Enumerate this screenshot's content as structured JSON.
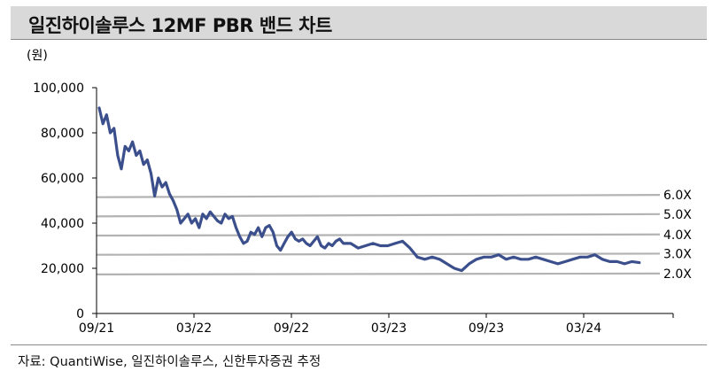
{
  "title": "일진하이솔루스 12MF PBR 밴드 차트",
  "source": "자료: QuantiWise, 일진하이솔루스, 신한투자증권 추정",
  "colors": {
    "price": "#3b4f8c",
    "band": "#b3b3b3",
    "axis": "#000000"
  },
  "chart_data": {
    "type": "line",
    "unit_label": "(원)",
    "ylim": [
      0,
      100000
    ],
    "y_ticks": [
      "0",
      "20,000",
      "40,000",
      "60,000",
      "80,000",
      "100,000"
    ],
    "y_tick_values": [
      0,
      20000,
      40000,
      60000,
      80000,
      100000
    ],
    "x_ticks": [
      "09/21",
      "03/22",
      "09/22",
      "03/23",
      "09/23",
      "03/24"
    ],
    "x_tick_values": [
      "2021-09",
      "2022-03",
      "2022-09",
      "2023-03",
      "2023-09",
      "2024-03"
    ],
    "bands": [
      {
        "label": "6.0X",
        "values": [
          51500,
          52500
        ]
      },
      {
        "label": "5.0X",
        "values": [
          43000,
          44000
        ]
      },
      {
        "label": "4.0X",
        "values": [
          34500,
          35000
        ]
      },
      {
        "label": "3.0X",
        "values": [
          26000,
          26500
        ]
      },
      {
        "label": "2.0X",
        "values": [
          17300,
          17700
        ]
      }
    ],
    "series": [
      {
        "x": [
          "2021-09-20",
          "2021-09-27",
          "2021-10-04",
          "2021-10-11",
          "2021-10-18",
          "2021-10-25",
          "2021-11-01",
          "2021-11-08",
          "2021-11-15",
          "2021-11-22",
          "2021-11-29",
          "2021-12-06",
          "2021-12-13",
          "2021-12-20",
          "2021-12-27",
          "2022-01-03",
          "2022-01-10",
          "2022-01-17",
          "2022-01-24",
          "2022-01-31",
          "2022-02-07",
          "2022-02-14",
          "2022-02-21",
          "2022-02-28",
          "2022-03-07",
          "2022-03-14",
          "2022-03-21",
          "2022-03-28",
          "2022-04-04",
          "2022-04-11",
          "2022-04-18",
          "2022-04-25",
          "2022-05-02",
          "2022-05-09",
          "2022-05-16",
          "2022-05-23",
          "2022-05-30",
          "2022-06-06",
          "2022-06-13",
          "2022-06-20",
          "2022-06-27",
          "2022-07-04",
          "2022-07-11",
          "2022-07-18",
          "2022-07-25",
          "2022-08-01",
          "2022-08-08",
          "2022-08-15",
          "2022-08-22",
          "2022-08-29",
          "2022-09-05",
          "2022-09-12",
          "2022-09-19",
          "2022-09-26",
          "2022-10-03",
          "2022-10-10",
          "2022-10-17",
          "2022-10-24",
          "2022-10-31",
          "2022-11-07",
          "2022-11-14",
          "2022-11-21",
          "2022-11-28",
          "2022-12-05",
          "2022-12-12",
          "2022-12-19",
          "2022-12-26",
          "2023-01-09",
          "2023-01-23",
          "2023-02-06",
          "2023-02-20",
          "2023-03-06",
          "2023-03-20",
          "2023-04-03",
          "2023-04-17",
          "2023-05-01",
          "2023-05-15",
          "2023-05-29",
          "2023-06-12",
          "2023-06-26",
          "2023-07-10",
          "2023-07-24",
          "2023-08-07",
          "2023-08-21",
          "2023-09-04",
          "2023-09-18",
          "2023-10-02",
          "2023-10-16",
          "2023-10-30",
          "2023-11-13",
          "2023-11-27",
          "2023-12-11",
          "2023-12-25",
          "2024-01-08",
          "2024-01-22",
          "2024-02-05",
          "2024-02-19",
          "2024-03-04",
          "2024-03-18",
          "2024-04-01",
          "2024-04-15",
          "2024-04-29",
          "2024-05-13",
          "2024-05-27",
          "2024-06-10",
          "2024-06-24",
          "2024-07-08"
        ],
        "values": [
          91000,
          84000,
          88000,
          80000,
          82000,
          70000,
          64000,
          74000,
          72000,
          76000,
          70000,
          72000,
          66000,
          68000,
          62000,
          52000,
          60000,
          56000,
          58000,
          53000,
          50000,
          46000,
          40000,
          42000,
          44000,
          40000,
          42000,
          38000,
          44000,
          42000,
          45000,
          43000,
          41000,
          40000,
          44000,
          42000,
          43000,
          38000,
          34000,
          31000,
          32000,
          36000,
          35000,
          38000,
          34000,
          38000,
          39000,
          36000,
          30000,
          28000,
          31000,
          34000,
          36000,
          33000,
          32000,
          33000,
          31000,
          30000,
          32000,
          34000,
          30000,
          29000,
          31000,
          30000,
          32000,
          33000,
          31000,
          31000,
          29000,
          30000,
          31000,
          30000,
          30000,
          31000,
          32000,
          29000,
          25000,
          24000,
          25000,
          24000,
          22000,
          20000,
          19000,
          22000,
          24000,
          25000,
          25000,
          26000,
          24000,
          25000,
          24000,
          24000,
          25000,
          24000,
          23000,
          22000,
          23000,
          24000,
          25000,
          25000,
          26000,
          24000,
          23000,
          23000,
          22000,
          23000,
          22500
        ]
      }
    ]
  }
}
